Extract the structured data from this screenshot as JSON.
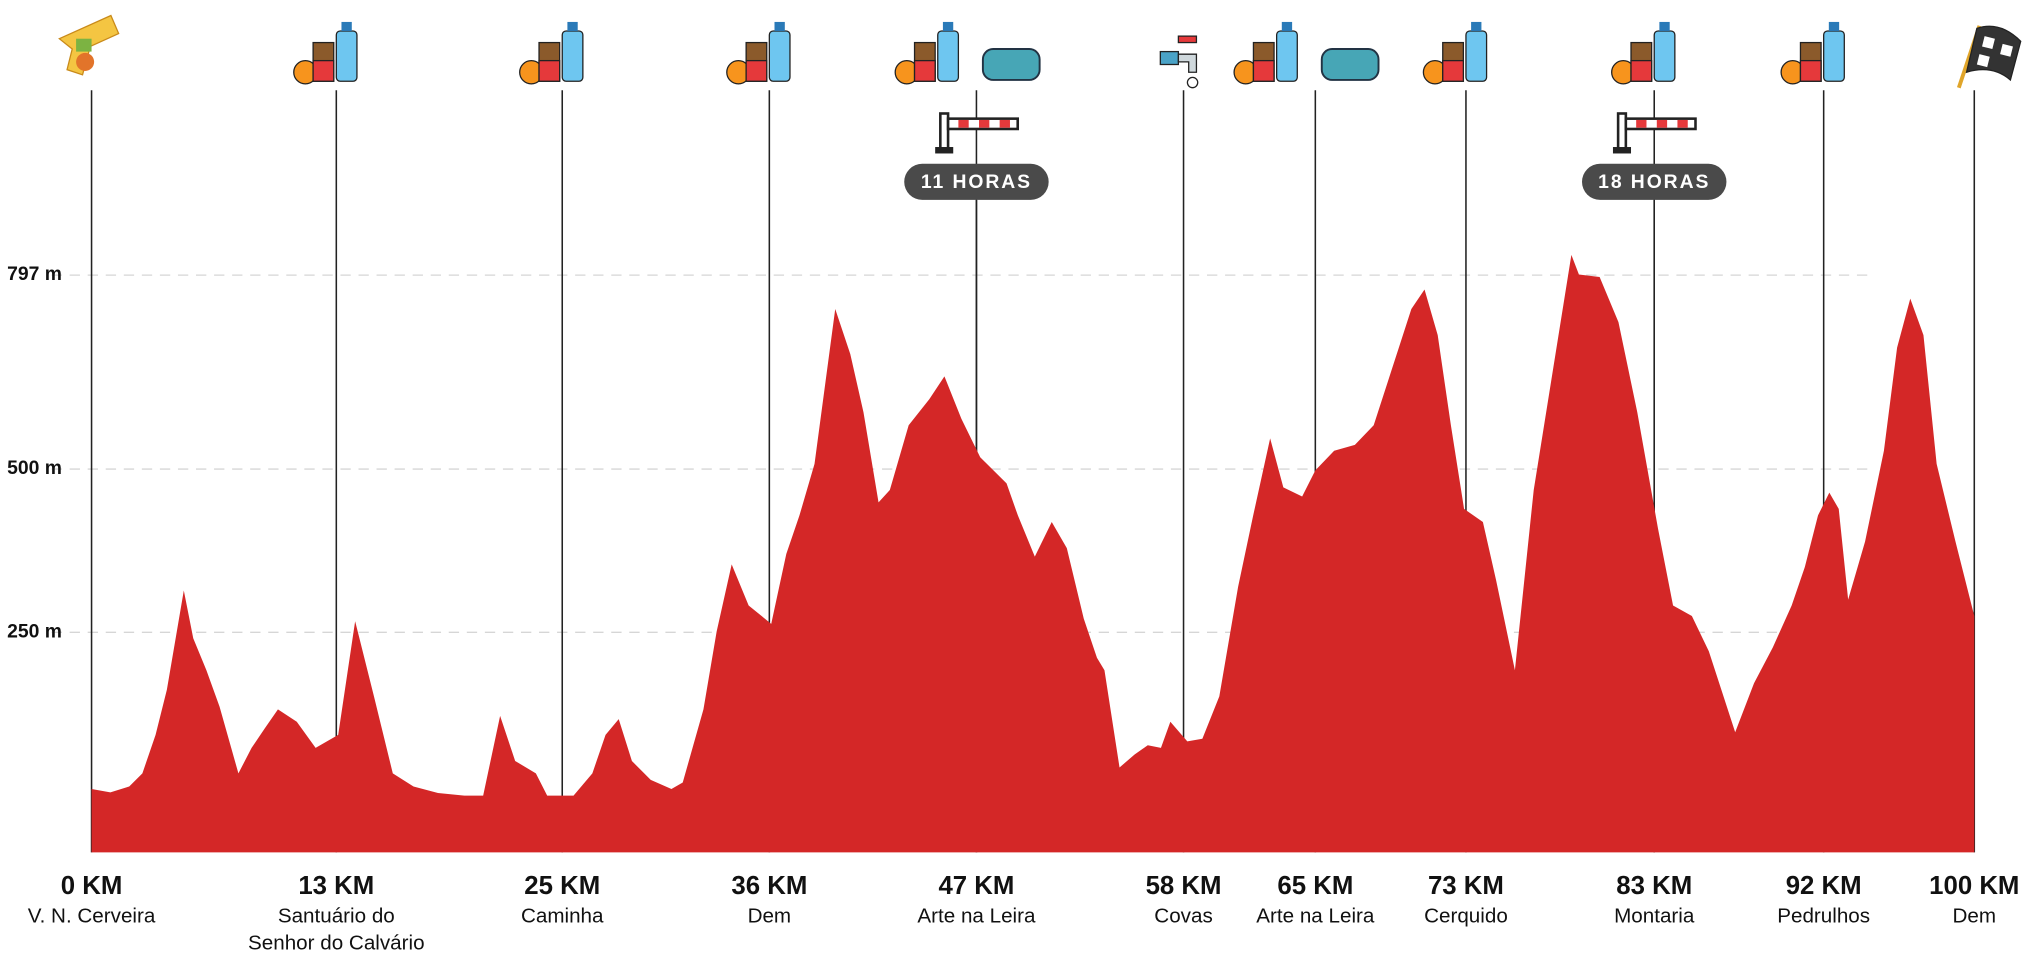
{
  "chart_data": {
    "type": "area",
    "color": "#d42727",
    "x": [
      0,
      1.0,
      2.0,
      2.7,
      3.4,
      4.0,
      4.9,
      5.4,
      6.1,
      6.8,
      7.8,
      8.5,
      9.2,
      9.9,
      10.9,
      11.9,
      13.1,
      14.0,
      15.0,
      16.0,
      17.1,
      18.4,
      19.8,
      20.8,
      21.7,
      22.5,
      23.6,
      24.2,
      25.6,
      26.6,
      27.3,
      28.0,
      28.7,
      29.7,
      30.8,
      31.4,
      32.5,
      33.2,
      34.0,
      34.9,
      36.1,
      36.9,
      37.6,
      38.4,
      39.5,
      40.3,
      41.0,
      41.8,
      42.4,
      43.4,
      44.5,
      45.3,
      46.2,
      47.2,
      48.6,
      49.2,
      50.1,
      51.0,
      51.8,
      52.7,
      53.4,
      53.8,
      54.6,
      55.4,
      56.1,
      56.8,
      57.3,
      58.2,
      59.0,
      59.9,
      60.9,
      61.7,
      62.6,
      63.3,
      64.3,
      65.0,
      66.0,
      67.1,
      68.1,
      69.1,
      70.1,
      70.8,
      71.5,
      72.2,
      72.9,
      73.9,
      74.6,
      75.6,
      76.6,
      77.7,
      78.6,
      79.0,
      80.1,
      81.1,
      82.1,
      83.2,
      84.0,
      85.0,
      85.9,
      87.3,
      88.3,
      89.3,
      90.3,
      91.0,
      91.7,
      92.3,
      92.8,
      93.3,
      94.2,
      95.2,
      95.9,
      96.6,
      97.3,
      98.0,
      99.0,
      100
    ],
    "values": [
      10,
      5,
      14,
      34,
      93,
      162,
      314,
      241,
      192,
      136,
      34,
      73,
      103,
      132,
      113,
      73,
      93,
      267,
      152,
      34,
      14,
      4,
      0,
      0,
      122,
      53,
      34,
      0,
      0,
      34,
      93,
      117,
      53,
      24,
      10,
      20,
      132,
      251,
      354,
      291,
      263,
      370,
      429,
      508,
      745,
      676,
      587,
      449,
      468,
      567,
      607,
      642,
      577,
      518,
      478,
      429,
      366,
      419,
      379,
      271,
      211,
      192,
      43,
      63,
      77,
      73,
      113,
      83,
      87,
      152,
      320,
      429,
      547,
      472,
      458,
      498,
      528,
      537,
      567,
      656,
      745,
      775,
      705,
      567,
      439,
      419,
      330,
      192,
      468,
      666,
      828,
      798,
      794,
      725,
      587,
      409,
      291,
      275,
      221,
      97,
      172,
      227,
      291,
      350,
      429,
      464,
      439,
      300,
      389,
      528,
      686,
      761,
      705,
      508,
      389,
      275
    ],
    "xlim": [
      0,
      100
    ],
    "ylim": [
      -87,
      1080
    ],
    "xticks": [
      {
        "value": 0,
        "label": "0 KM"
      },
      {
        "value": 13,
        "label": "13 KM"
      },
      {
        "value": 25,
        "label": "25 KM"
      },
      {
        "value": 36,
        "label": "36 KM"
      },
      {
        "value": 47,
        "label": "47 KM"
      },
      {
        "value": 58,
        "label": "58 KM"
      },
      {
        "value": 65,
        "label": "65 KM"
      },
      {
        "value": 73,
        "label": "73 KM"
      },
      {
        "value": 83,
        "label": "83 KM"
      },
      {
        "value": 92,
        "label": "92 KM"
      },
      {
        "value": 100,
        "label": "100 KM"
      }
    ],
    "xtick_names": [
      "V. N. Cerveira",
      [
        "Santuário do",
        "Senhor do Calvário"
      ],
      "Caminha",
      "Dem",
      "Arte na Leira",
      "Covas",
      "Arte na Leira",
      "Cerquido",
      "Montaria",
      "Pedrulhos",
      "Dem"
    ],
    "yticks": [
      {
        "value": 250,
        "label": "250 m"
      },
      {
        "value": 500,
        "label": "500 m"
      },
      {
        "value": 797,
        "label": "797 m"
      }
    ],
    "grid": true,
    "annotations": [
      {
        "x": 47,
        "text": "11 HORAS"
      },
      {
        "x": 83,
        "text": "18 HORAS"
      }
    ]
  }
}
